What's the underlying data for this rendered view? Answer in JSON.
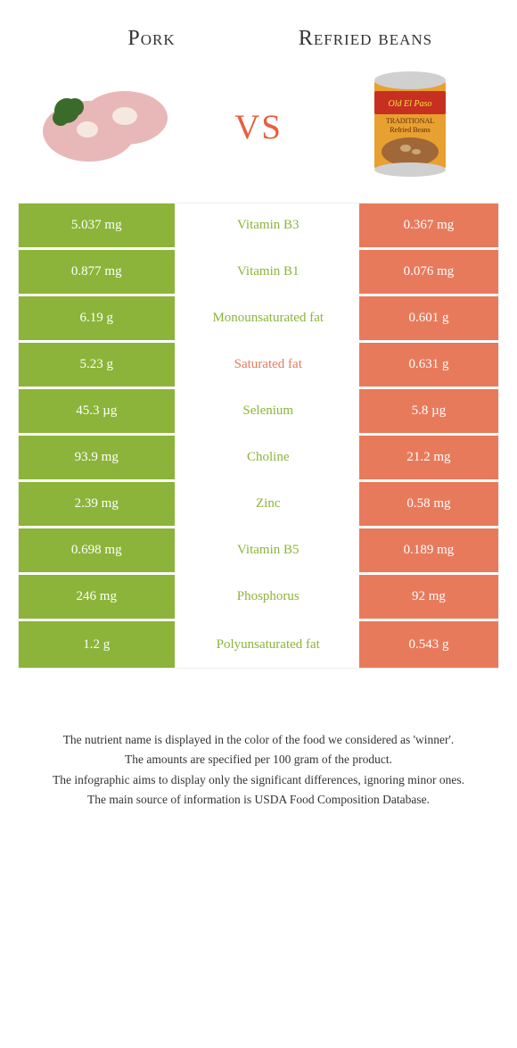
{
  "header": {
    "left_title": "Pork",
    "right_title": "Refried beans",
    "vs": "vs"
  },
  "colors": {
    "left_bg": "#8cb43a",
    "right_bg": "#e87a5c",
    "left_text": "#8cb43a",
    "right_text": "#e87a5c",
    "vs_color": "#e65f3f"
  },
  "rows": [
    {
      "left": "5.037 mg",
      "label": "Vitamin B3",
      "right": "0.367 mg",
      "winner": "left"
    },
    {
      "left": "0.877 mg",
      "label": "Vitamin B1",
      "right": "0.076 mg",
      "winner": "left"
    },
    {
      "left": "6.19 g",
      "label": "Monounsaturated fat",
      "right": "0.601 g",
      "winner": "left"
    },
    {
      "left": "5.23 g",
      "label": "Saturated fat",
      "right": "0.631 g",
      "winner": "right"
    },
    {
      "left": "45.3 µg",
      "label": "Selenium",
      "right": "5.8 µg",
      "winner": "left"
    },
    {
      "left": "93.9 mg",
      "label": "Choline",
      "right": "21.2 mg",
      "winner": "left"
    },
    {
      "left": "2.39 mg",
      "label": "Zinc",
      "right": "0.58 mg",
      "winner": "left"
    },
    {
      "left": "0.698 mg",
      "label": "Vitamin B5",
      "right": "0.189 mg",
      "winner": "left"
    },
    {
      "left": "246 mg",
      "label": "Phosphorus",
      "right": "92 mg",
      "winner": "left"
    },
    {
      "left": "1.2 g",
      "label": "Polyunsaturated fat",
      "right": "0.543 g",
      "winner": "left"
    }
  ],
  "footnotes": [
    "The nutrient name is displayed in the color of the food we considered as 'winner'.",
    "The amounts are specified per 100 gram of the product.",
    "The infographic aims to display only the significant differences, ignoring minor ones.",
    "The main source of information is USDA Food Composition Database."
  ]
}
